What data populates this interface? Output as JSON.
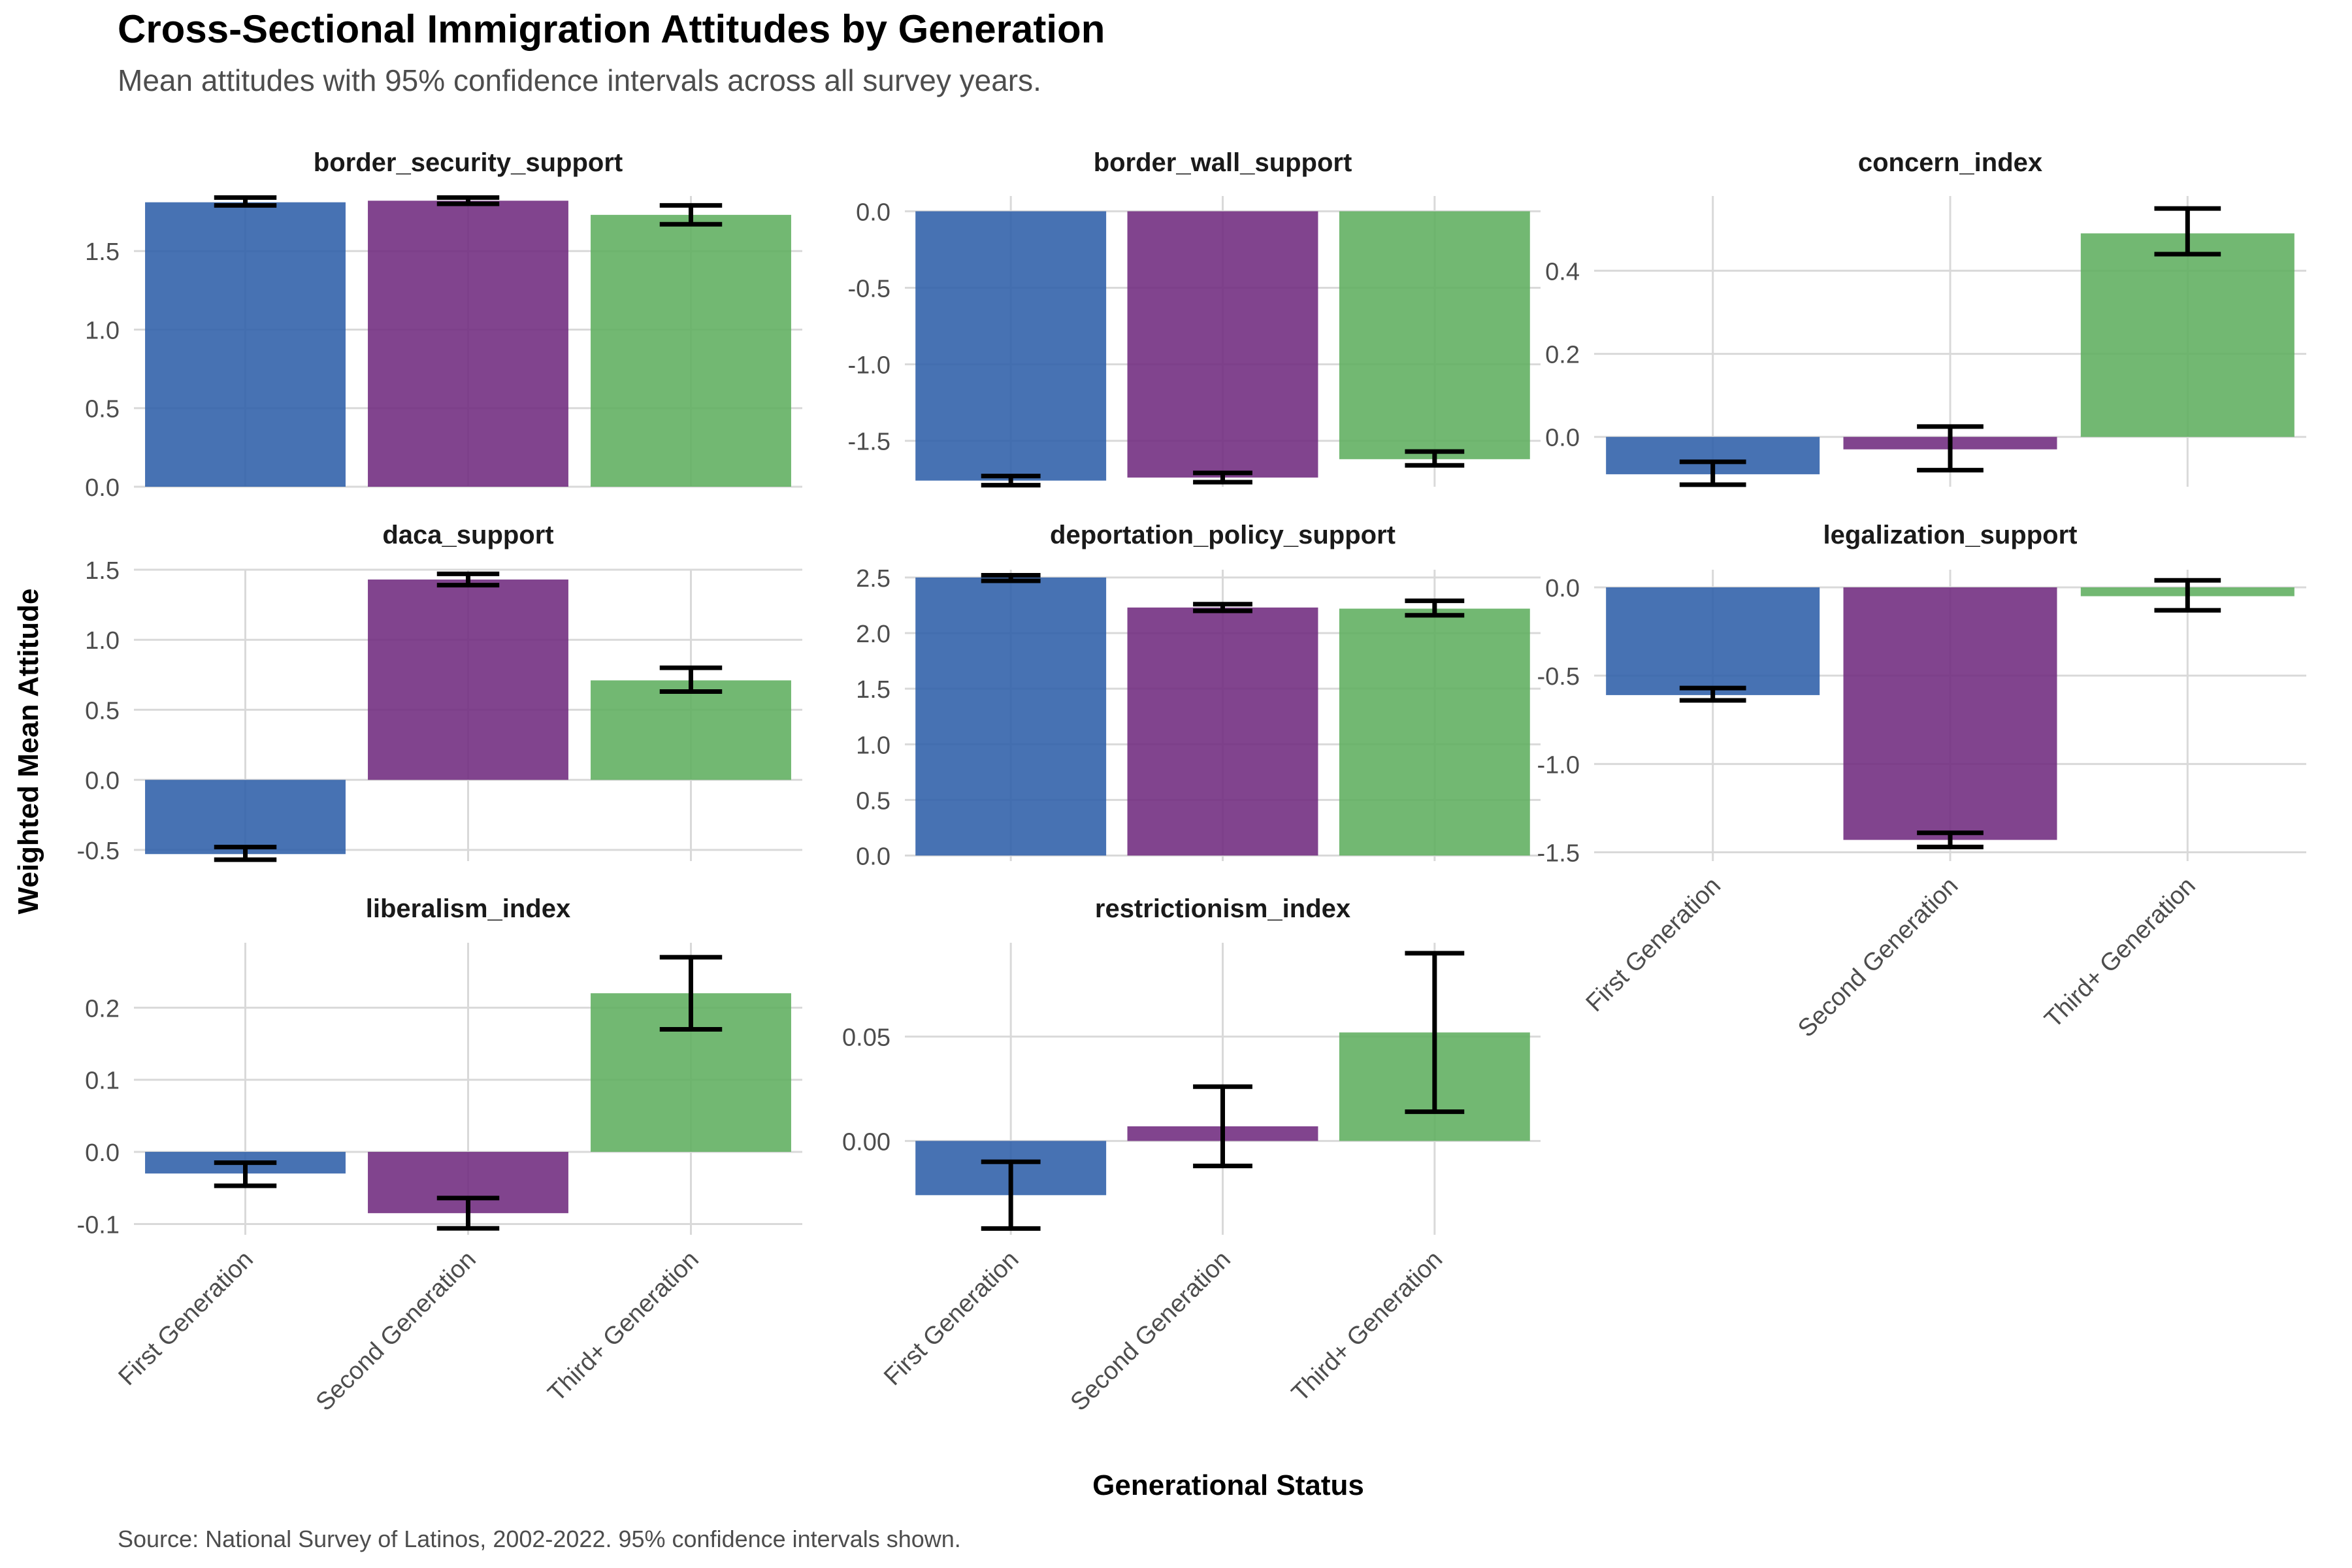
{
  "title": "Cross-Sectional Immigration Attitudes by Generation",
  "subtitle": "Mean attitudes with 95% confidence intervals across all survey years.",
  "caption": "Source: National Survey of Latinos, 2002-2022. 95% confidence intervals shown.",
  "xlabel": "Generational Status",
  "ylabel": "Weighted Mean Attitude",
  "colors": {
    "First Generation": "#2E5EA8",
    "Second Generation": "#702A7E",
    "Third+ Generation": "#5EAE5E",
    "grid": "#d9d9d9",
    "errorbar": "#000000"
  },
  "chart_data": {
    "type": "bar",
    "facets": true,
    "categories": [
      "First Generation",
      "Second Generation",
      "Third+ Generation"
    ],
    "panels": [
      {
        "title": "border_security_support",
        "ylim": [
          0,
          1.85
        ],
        "ticks": [
          0.0,
          0.5,
          1.0,
          1.5
        ],
        "tick_labels": [
          "0.0",
          "0.5",
          "1.0",
          "1.5"
        ],
        "values": [
          1.81,
          1.82,
          1.73
        ],
        "ci_low": [
          1.79,
          1.8,
          1.67
        ],
        "ci_high": [
          1.84,
          1.84,
          1.79
        ]
      },
      {
        "title": "border_wall_support",
        "ylim": [
          -1.8,
          0.1
        ],
        "ticks": [
          0.0,
          -0.5,
          -1.0,
          -1.5
        ],
        "tick_labels": [
          "0.0",
          "-0.5",
          "-1.0",
          "-1.5"
        ],
        "values": [
          -1.76,
          -1.74,
          -1.62
        ],
        "ci_low": [
          -1.79,
          -1.77,
          -1.66
        ],
        "ci_high": [
          -1.73,
          -1.71,
          -1.57
        ]
      },
      {
        "title": "concern_index",
        "ylim": [
          -0.12,
          0.58
        ],
        "ticks": [
          0.0,
          0.2,
          0.4
        ],
        "tick_labels": [
          "0.0",
          "0.2",
          "0.4"
        ],
        "values": [
          -0.09,
          -0.03,
          0.49
        ],
        "ci_low": [
          -0.115,
          -0.08,
          0.44
        ],
        "ci_high": [
          -0.06,
          0.025,
          0.55
        ]
      },
      {
        "title": "daca_support",
        "ylim": [
          -0.58,
          1.5
        ],
        "ticks": [
          -0.5,
          0.0,
          0.5,
          1.0,
          1.5
        ],
        "tick_labels": [
          "-0.5",
          "0.0",
          "0.5",
          "1.0",
          "1.5"
        ],
        "values": [
          -0.53,
          1.43,
          0.71
        ],
        "ci_low": [
          -0.57,
          1.39,
          0.63
        ],
        "ci_high": [
          -0.48,
          1.47,
          0.8
        ]
      },
      {
        "title": "deportation_policy_support",
        "ylim": [
          -0.05,
          2.57
        ],
        "ticks": [
          0.0,
          0.5,
          1.0,
          1.5,
          2.0,
          2.5
        ],
        "tick_labels": [
          "0.0",
          "0.5",
          "1.0",
          "1.5",
          "2.0",
          "2.5"
        ],
        "values": [
          2.5,
          2.23,
          2.22
        ],
        "ci_low": [
          2.47,
          2.2,
          2.16
        ],
        "ci_high": [
          2.52,
          2.26,
          2.29
        ]
      },
      {
        "title": "legalization_support",
        "ylim": [
          -1.55,
          0.1
        ],
        "ticks": [
          0.0,
          -0.5,
          -1.0,
          -1.5
        ],
        "tick_labels": [
          "0.0",
          "-0.5",
          "-1.0",
          "-1.5"
        ],
        "values": [
          -0.61,
          -1.43,
          -0.05
        ],
        "ci_low": [
          -0.64,
          -1.47,
          -0.13
        ],
        "ci_high": [
          -0.57,
          -1.39,
          0.04
        ]
      },
      {
        "title": "liberalism_index",
        "ylim": [
          -0.115,
          0.29
        ],
        "ticks": [
          -0.1,
          0.0,
          0.1,
          0.2
        ],
        "tick_labels": [
          "-0.1",
          "0.0",
          "0.1",
          "0.2"
        ],
        "values": [
          -0.03,
          -0.085,
          0.22
        ],
        "ci_low": [
          -0.047,
          -0.106,
          0.17
        ],
        "ci_high": [
          -0.015,
          -0.064,
          0.27
        ]
      },
      {
        "title": "restrictionism_index",
        "ylim": [
          -0.045,
          0.095
        ],
        "ticks": [
          0.0,
          0.05
        ],
        "tick_labels": [
          "0.00",
          "0.05"
        ],
        "values": [
          -0.026,
          0.007,
          0.052
        ],
        "ci_low": [
          -0.042,
          -0.012,
          0.014
        ],
        "ci_high": [
          -0.01,
          0.026,
          0.09
        ]
      }
    ]
  }
}
